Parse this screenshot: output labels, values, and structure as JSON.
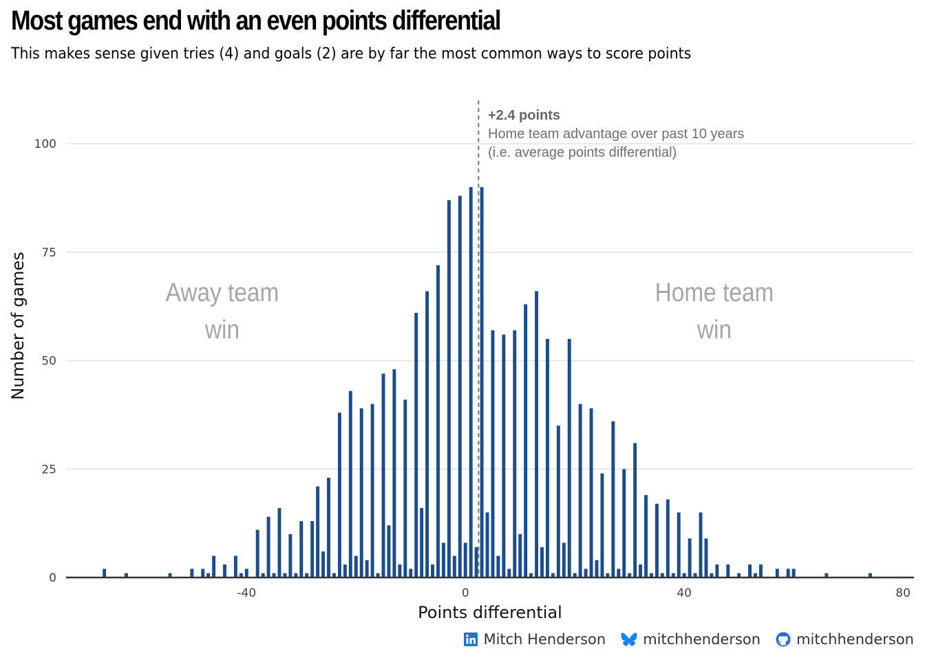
{
  "title": "Most games end with an even points differential",
  "subtitle": "This makes sense given tries (4) and goals (2) are by far the most common ways to score points",
  "annotation": {
    "headline": "+2.4 points",
    "line1": "Home team advantage over past 10 years",
    "line2": "(i.e. average points differential)",
    "x_value": 2.4
  },
  "labels": {
    "away": [
      "Away team",
      "win"
    ],
    "home": [
      "Home team",
      "win"
    ]
  },
  "caption": {
    "linkedin_icon": "linkedin-icon",
    "linkedin": "Mitch Henderson",
    "bluesky_icon": "butterfly-icon",
    "bluesky": "mitchhenderson",
    "github_icon": "github-icon",
    "github": "mitchhenderson"
  },
  "colors": {
    "bar": "#1c4c8c",
    "grid": "#e6e6e6",
    "annotation": "#666666",
    "side_label": "#a6a6a6"
  },
  "chart_data": {
    "type": "bar",
    "title": "Most games end with an even points differential",
    "xlabel": "Points differential",
    "ylabel": "Number of games",
    "xlim": [
      -73,
      82
    ],
    "ylim": [
      0,
      110
    ],
    "xticks": [
      -40,
      0,
      40,
      80
    ],
    "xtick_labels": [
      "-40",
      "0",
      "40",
      "80"
    ],
    "yticks": [
      0,
      25,
      50,
      75,
      100
    ],
    "ytick_labels": [
      "0",
      "25",
      "50",
      "75",
      "100"
    ],
    "grid": "horizontal",
    "x": [
      -66,
      -62,
      -54,
      -50,
      -48,
      -47,
      -46,
      -44,
      -42,
      -41,
      -40,
      -38,
      -37,
      -36,
      -35,
      -34,
      -33,
      -32,
      -31,
      -30,
      -29,
      -28,
      -27,
      -26,
      -25,
      -24,
      -23,
      -22,
      -21,
      -20,
      -19,
      -18,
      -17,
      -16,
      -15,
      -14,
      -13,
      -12,
      -11,
      -10,
      -9,
      -8,
      -7,
      -6,
      -5,
      -4,
      -3,
      -2,
      -1,
      0,
      1,
      2,
      3,
      4,
      5,
      6,
      7,
      8,
      9,
      10,
      11,
      12,
      13,
      14,
      15,
      16,
      17,
      18,
      19,
      20,
      21,
      22,
      23,
      24,
      25,
      26,
      27,
      28,
      29,
      30,
      31,
      32,
      33,
      34,
      35,
      36,
      37,
      38,
      39,
      40,
      41,
      42,
      43,
      44,
      45,
      46,
      48,
      50,
      52,
      53,
      54,
      57,
      59,
      60,
      66,
      74
    ],
    "values": [
      2,
      1,
      1,
      2,
      2,
      1,
      5,
      3,
      5,
      1,
      2,
      11,
      1,
      14,
      1,
      16,
      1,
      10,
      1,
      13,
      1,
      13,
      21,
      6,
      23,
      1,
      38,
      3,
      43,
      5,
      39,
      4,
      40,
      1,
      47,
      12,
      48,
      3,
      41,
      2,
      61,
      16,
      66,
      3,
      72,
      8,
      87,
      5,
      88,
      8,
      90,
      7,
      90,
      15,
      57,
      5,
      56,
      2,
      57,
      10,
      63,
      1,
      66,
      7,
      55,
      1,
      35,
      8,
      55,
      1,
      40,
      2,
      39,
      4,
      24,
      1,
      36,
      2,
      25,
      1,
      31,
      3,
      19,
      1,
      17,
      1,
      18,
      1,
      15,
      1,
      9,
      1,
      15,
      9,
      1,
      3,
      3,
      1,
      3,
      1,
      3,
      2,
      2,
      2,
      1,
      1
    ],
    "series": [
      {
        "name": "Games",
        "color": "#1c4c8c"
      }
    ]
  }
}
